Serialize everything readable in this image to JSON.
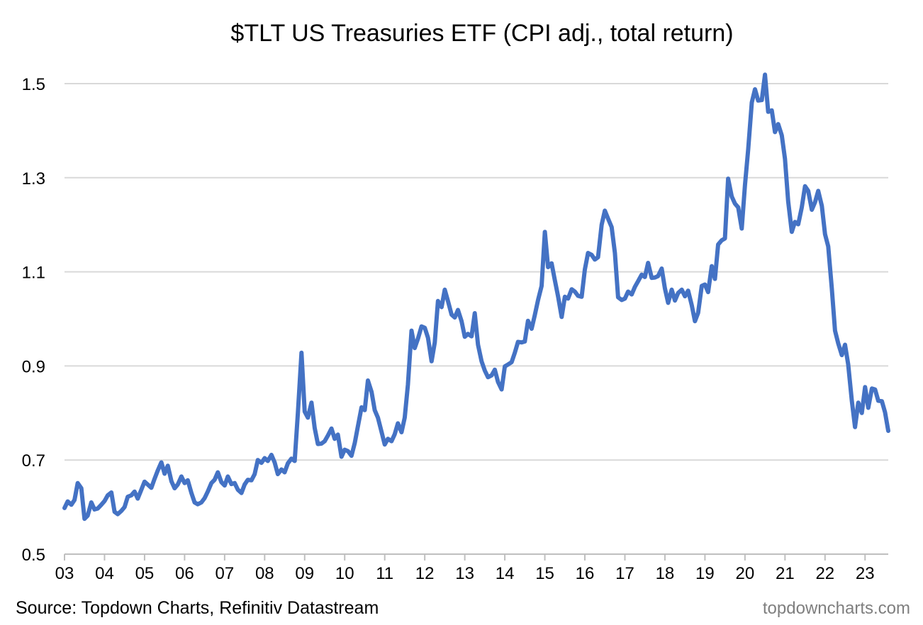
{
  "chart_data": {
    "type": "line",
    "title": "$TLT US Treasuries ETF (CPI adj., total return)",
    "xlabel": "",
    "ylabel": "",
    "ylim": [
      0.5,
      1.5
    ],
    "yticks": [
      0.5,
      0.7,
      0.9,
      1.1,
      1.3,
      1.5
    ],
    "yticklabels": [
      "0.5",
      "0.7",
      "0.9",
      "1.1",
      "1.3",
      "1.5"
    ],
    "xlim": [
      2003.0,
      2023.58
    ],
    "xticks": [
      2003,
      2004,
      2005,
      2006,
      2007,
      2008,
      2009,
      2010,
      2011,
      2012,
      2013,
      2014,
      2015,
      2016,
      2017,
      2018,
      2019,
      2020,
      2021,
      2022,
      2023
    ],
    "xticklabels": [
      "03",
      "04",
      "05",
      "06",
      "07",
      "08",
      "09",
      "10",
      "11",
      "12",
      "13",
      "14",
      "15",
      "16",
      "17",
      "18",
      "19",
      "20",
      "21",
      "22",
      "23"
    ],
    "grid": true,
    "legend": "none",
    "series": [
      {
        "color": "#4472c4",
        "x": [
          2003.0,
          2003.08,
          2003.17,
          2003.25,
          2003.33,
          2003.42,
          2003.5,
          2003.58,
          2003.67,
          2003.75,
          2003.83,
          2003.92,
          2004.0,
          2004.08,
          2004.17,
          2004.25,
          2004.33,
          2004.42,
          2004.5,
          2004.58,
          2004.67,
          2004.75,
          2004.83,
          2004.92,
          2005.0,
          2005.08,
          2005.17,
          2005.25,
          2005.33,
          2005.42,
          2005.5,
          2005.58,
          2005.67,
          2005.75,
          2005.83,
          2005.92,
          2006.0,
          2006.08,
          2006.17,
          2006.25,
          2006.33,
          2006.42,
          2006.5,
          2006.58,
          2006.67,
          2006.75,
          2006.83,
          2006.92,
          2007.0,
          2007.08,
          2007.17,
          2007.25,
          2007.33,
          2007.42,
          2007.5,
          2007.58,
          2007.67,
          2007.75,
          2007.83,
          2007.92,
          2008.0,
          2008.08,
          2008.17,
          2008.25,
          2008.33,
          2008.42,
          2008.5,
          2008.58,
          2008.67,
          2008.75,
          2008.83,
          2008.92,
          2009.0,
          2009.08,
          2009.17,
          2009.25,
          2009.33,
          2009.42,
          2009.5,
          2009.58,
          2009.67,
          2009.75,
          2009.83,
          2009.92,
          2010.0,
          2010.08,
          2010.17,
          2010.25,
          2010.33,
          2010.42,
          2010.5,
          2010.58,
          2010.67,
          2010.75,
          2010.83,
          2010.92,
          2011.0,
          2011.08,
          2011.17,
          2011.25,
          2011.33,
          2011.42,
          2011.5,
          2011.58,
          2011.67,
          2011.75,
          2011.83,
          2011.92,
          2012.0,
          2012.08,
          2012.17,
          2012.25,
          2012.33,
          2012.42,
          2012.5,
          2012.58,
          2012.67,
          2012.75,
          2012.83,
          2012.92,
          2013.0,
          2013.08,
          2013.17,
          2013.25,
          2013.33,
          2013.42,
          2013.5,
          2013.58,
          2013.67,
          2013.75,
          2013.83,
          2013.92,
          2014.0,
          2014.08,
          2014.17,
          2014.25,
          2014.33,
          2014.42,
          2014.5,
          2014.58,
          2014.67,
          2014.75,
          2014.83,
          2014.92,
          2015.0,
          2015.08,
          2015.17,
          2015.25,
          2015.33,
          2015.42,
          2015.5,
          2015.58,
          2015.67,
          2015.75,
          2015.83,
          2015.92,
          2016.0,
          2016.08,
          2016.17,
          2016.25,
          2016.33,
          2016.42,
          2016.5,
          2016.58,
          2016.67,
          2016.75,
          2016.83,
          2016.92,
          2017.0,
          2017.08,
          2017.17,
          2017.25,
          2017.33,
          2017.42,
          2017.5,
          2017.58,
          2017.67,
          2017.75,
          2017.83,
          2017.92,
          2018.0,
          2018.08,
          2018.17,
          2018.25,
          2018.33,
          2018.42,
          2018.5,
          2018.58,
          2018.67,
          2018.75,
          2018.83,
          2018.92,
          2019.0,
          2019.08,
          2019.17,
          2019.25,
          2019.33,
          2019.42,
          2019.5,
          2019.58,
          2019.67,
          2019.75,
          2019.83,
          2019.92,
          2020.0,
          2020.08,
          2020.17,
          2020.25,
          2020.33,
          2020.42,
          2020.5,
          2020.58,
          2020.67,
          2020.75,
          2020.83,
          2020.92,
          2021.0,
          2021.08,
          2021.17,
          2021.25,
          2021.33,
          2021.42,
          2021.5,
          2021.58,
          2021.67,
          2021.75,
          2021.83,
          2021.92,
          2022.0,
          2022.08,
          2022.17,
          2022.25,
          2022.33,
          2022.42,
          2022.5,
          2022.58,
          2022.67,
          2022.75,
          2022.83,
          2022.92,
          2023.0,
          2023.08,
          2023.17,
          2023.25,
          2023.33,
          2023.42,
          2023.5,
          2023.58
        ],
        "values": [
          0.598,
          0.612,
          0.605,
          0.615,
          0.651,
          0.64,
          0.575,
          0.582,
          0.61,
          0.595,
          0.597,
          0.605,
          0.613,
          0.625,
          0.631,
          0.59,
          0.585,
          0.592,
          0.6,
          0.622,
          0.625,
          0.633,
          0.618,
          0.637,
          0.654,
          0.648,
          0.641,
          0.66,
          0.678,
          0.695,
          0.671,
          0.688,
          0.655,
          0.64,
          0.648,
          0.665,
          0.651,
          0.657,
          0.63,
          0.61,
          0.606,
          0.61,
          0.619,
          0.633,
          0.651,
          0.658,
          0.674,
          0.653,
          0.646,
          0.665,
          0.649,
          0.651,
          0.637,
          0.63,
          0.648,
          0.658,
          0.657,
          0.67,
          0.7,
          0.694,
          0.704,
          0.698,
          0.711,
          0.695,
          0.67,
          0.68,
          0.674,
          0.693,
          0.703,
          0.698,
          0.8,
          0.928,
          0.803,
          0.79,
          0.822,
          0.768,
          0.734,
          0.735,
          0.74,
          0.752,
          0.767,
          0.745,
          0.754,
          0.707,
          0.722,
          0.719,
          0.709,
          0.736,
          0.772,
          0.812,
          0.806,
          0.869,
          0.845,
          0.806,
          0.79,
          0.76,
          0.733,
          0.745,
          0.74,
          0.755,
          0.778,
          0.759,
          0.79,
          0.86,
          0.975,
          0.938,
          0.958,
          0.984,
          0.981,
          0.96,
          0.91,
          0.95,
          1.038,
          1.025,
          1.062,
          1.038,
          1.009,
          1.003,
          1.019,
          0.995,
          0.962,
          0.968,
          0.963,
          1.012,
          0.945,
          0.91,
          0.89,
          0.876,
          0.88,
          0.892,
          0.866,
          0.85,
          0.899,
          0.903,
          0.908,
          0.928,
          0.951,
          0.95,
          0.952,
          0.996,
          0.979,
          1.008,
          1.04,
          1.07,
          1.185,
          1.11,
          1.118,
          1.082,
          1.048,
          1.004,
          1.047,
          1.043,
          1.063,
          1.058,
          1.049,
          1.047,
          1.105,
          1.14,
          1.136,
          1.126,
          1.131,
          1.2,
          1.23,
          1.213,
          1.195,
          1.14,
          1.046,
          1.04,
          1.043,
          1.058,
          1.052,
          1.068,
          1.08,
          1.094,
          1.089,
          1.119,
          1.087,
          1.088,
          1.091,
          1.107,
          1.065,
          1.034,
          1.062,
          1.039,
          1.055,
          1.062,
          1.048,
          1.06,
          1.029,
          0.995,
          1.013,
          1.07,
          1.073,
          1.057,
          1.112,
          1.085,
          1.158,
          1.167,
          1.171,
          1.298,
          1.26,
          1.245,
          1.237,
          1.192,
          1.285,
          1.36,
          1.46,
          1.488,
          1.464,
          1.465,
          1.519,
          1.44,
          1.443,
          1.397,
          1.414,
          1.39,
          1.34,
          1.25,
          1.185,
          1.206,
          1.201,
          1.237,
          1.282,
          1.272,
          1.232,
          1.248,
          1.272,
          1.24,
          1.18,
          1.154,
          1.064,
          0.975,
          0.948,
          0.923,
          0.945,
          0.903,
          0.826,
          0.77,
          0.822,
          0.8,
          0.855,
          0.811,
          0.852,
          0.85,
          0.826,
          0.825,
          0.801,
          0.762
        ]
      }
    ]
  },
  "footer": {
    "source": "Source: Topdown Charts, Refinitiv Datastream",
    "watermark": "topdowncharts.com"
  }
}
